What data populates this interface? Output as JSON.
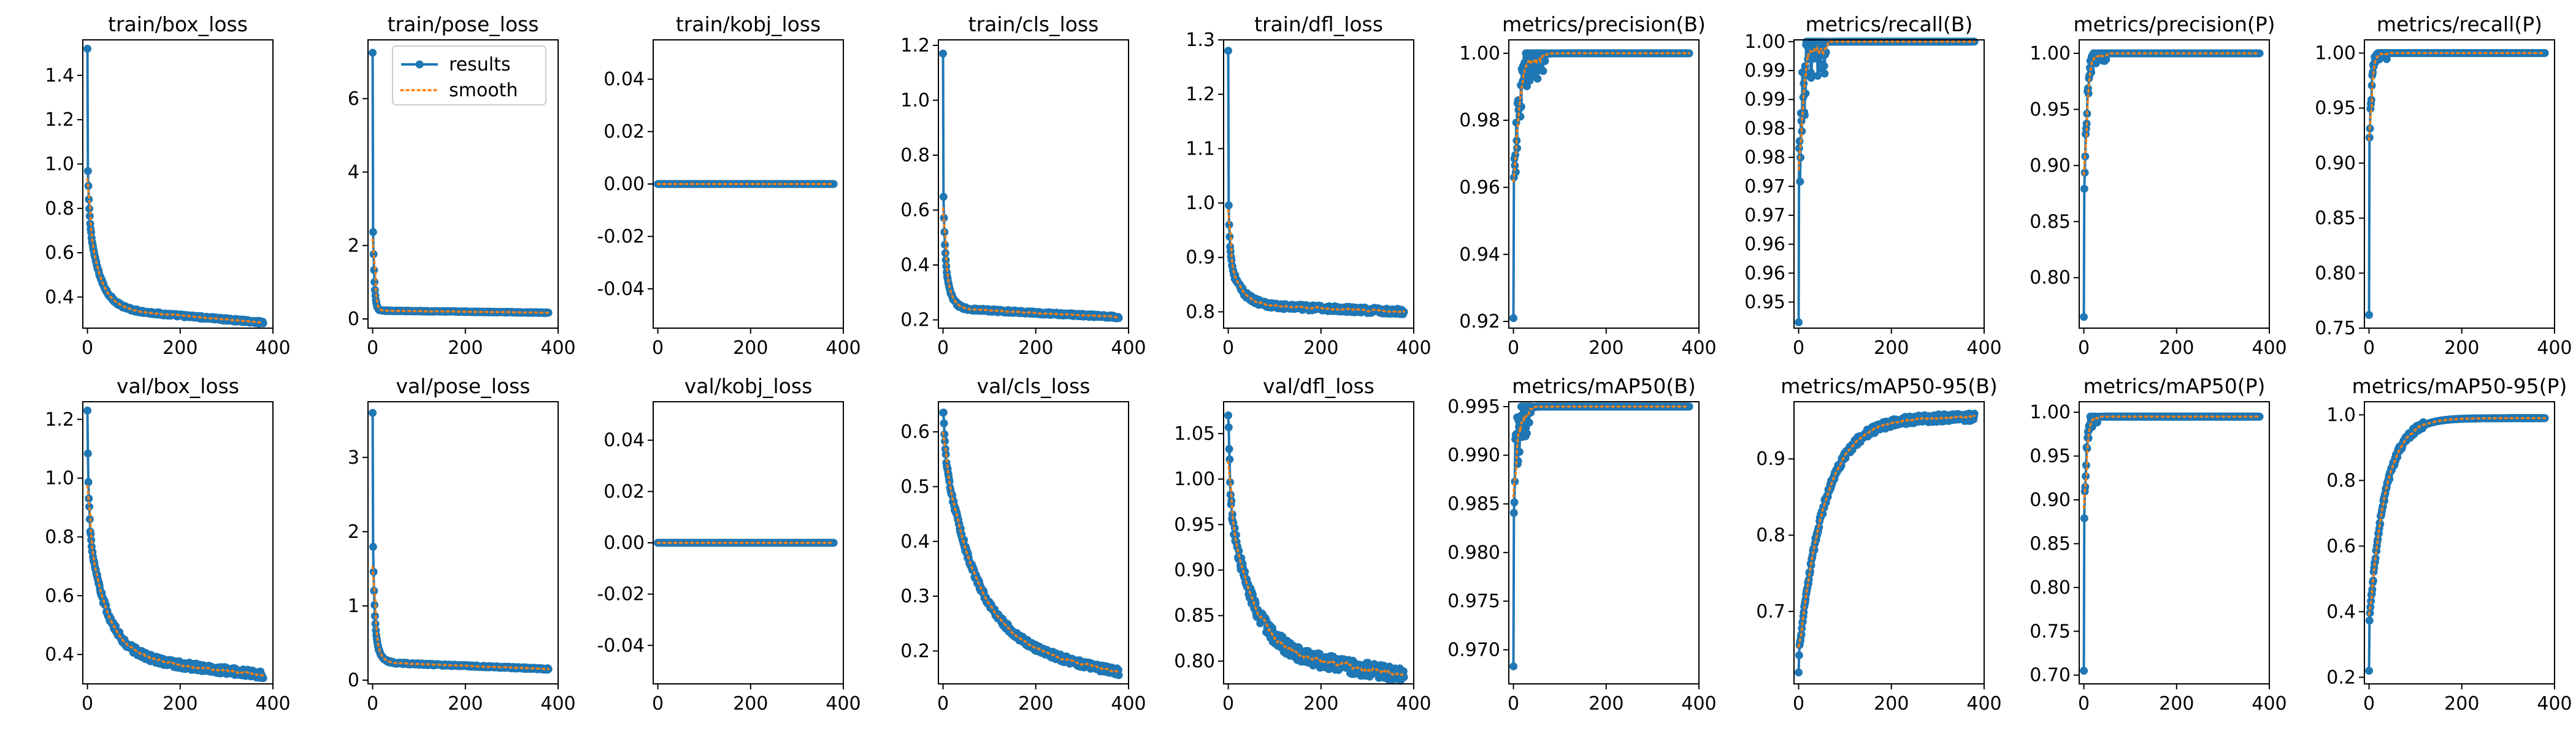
{
  "colors": {
    "results": "#1f77b4",
    "smooth": "#ff7f0e"
  },
  "legend": {
    "results": "results",
    "smooth": "smooth"
  },
  "chart_data": [
    {
      "id": "train_box_loss",
      "title": "train/box_loss",
      "type": "line",
      "xlim": [
        -10,
        400
      ],
      "ylim": [
        0.26,
        1.56
      ],
      "yticks": [
        0.4,
        0.6,
        0.8,
        1.0,
        1.2,
        1.4
      ],
      "dec": 1,
      "xticks": [
        0,
        200,
        400
      ],
      "curve": {
        "kind": "decay",
        "v0": 1.52,
        "a": 0.27,
        "b": 0.44,
        "tau": 25,
        "end": 0.285,
        "noise": 0.006
      }
    },
    {
      "id": "train_pose_loss",
      "title": "train/pose_loss",
      "type": "line",
      "xlim": [
        -10,
        400
      ],
      "ylim": [
        -0.25,
        7.6
      ],
      "yticks": [
        0,
        2,
        4,
        6
      ],
      "dec": 0,
      "xticks": [
        0,
        200,
        400
      ],
      "curve": {
        "kind": "decay",
        "v0": 7.25,
        "a": 2.6,
        "b": 0.38,
        "tau": 3,
        "end": 0.17,
        "noise": 0.01
      },
      "legend": true
    },
    {
      "id": "train_kobj_loss",
      "title": "train/kobj_loss",
      "type": "line",
      "xlim": [
        -10,
        400
      ],
      "ylim": [
        -0.055,
        0.055
      ],
      "yticks": [
        -0.04,
        -0.02,
        0.0,
        0.02,
        0.04
      ],
      "dec": 2,
      "xticks": [
        0,
        200,
        400
      ],
      "curve": {
        "kind": "const",
        "v": 0.0
      }
    },
    {
      "id": "train_cls_loss",
      "title": "train/cls_loss",
      "type": "line",
      "xlim": [
        -10,
        400
      ],
      "ylim": [
        0.17,
        1.22
      ],
      "yticks": [
        0.2,
        0.4,
        0.6,
        0.8,
        1.0,
        1.2
      ],
      "dec": 1,
      "xticks": [
        0,
        200,
        400
      ],
      "curve": {
        "kind": "decay",
        "v0": 1.17,
        "a": 0.28,
        "b": 0.22,
        "tau": 12,
        "end": 0.21,
        "noise": 0.005
      }
    },
    {
      "id": "train_dfl_loss",
      "title": "train/dfl_loss",
      "type": "line",
      "xlim": [
        -10,
        400
      ],
      "ylim": [
        0.77,
        1.3
      ],
      "yticks": [
        0.8,
        0.9,
        1.0,
        1.1,
        1.2,
        1.3
      ],
      "dec": 1,
      "xticks": [
        0,
        200,
        400
      ],
      "curve": {
        "kind": "decay",
        "v0": 1.28,
        "a": 0.13,
        "b": 0.09,
        "tau": 25,
        "end": 0.8,
        "noise": 0.005
      }
    },
    {
      "id": "metrics_precision_B",
      "title": "metrics/precision(B)",
      "type": "line",
      "xlim": [
        -10,
        400
      ],
      "ylim": [
        0.918,
        1.004
      ],
      "yticks": [
        0.92,
        0.94,
        0.96,
        0.98,
        1.0
      ],
      "dec": 2,
      "xticks": [
        0,
        200,
        400
      ],
      "curve": {
        "kind": "rise",
        "v0": 0.921,
        "start": 0.955,
        "plateau": 1.0,
        "tau": 12,
        "noise": 0.007,
        "noiseEnd": 70,
        "clamp": 1.0
      }
    },
    {
      "id": "metrics_recall_B",
      "title": "metrics/recall(B)",
      "type": "line",
      "xlim": [
        -10,
        400
      ],
      "ylim": [
        0.9505,
        1.0003
      ],
      "yticks": [
        0.955,
        0.96,
        0.965,
        0.97,
        0.975,
        0.98,
        0.985,
        0.99,
        0.995,
        1.0
      ],
      "dec": 2,
      "xticks": [
        0,
        200,
        400
      ],
      "curve": {
        "kind": "rise",
        "v0": 0.9515,
        "start": 0.975,
        "plateau": 1.0,
        "tau": 10,
        "noise": 0.006,
        "noiseEnd": 60,
        "clamp": 1.0
      }
    },
    {
      "id": "metrics_precision_P",
      "title": "metrics/precision(P)",
      "type": "line",
      "xlim": [
        -10,
        400
      ],
      "ylim": [
        0.755,
        1.012
      ],
      "yticks": [
        0.8,
        0.85,
        0.9,
        0.95,
        1.0
      ],
      "dec": 2,
      "xticks": [
        0,
        200,
        400
      ],
      "curve": {
        "kind": "rise",
        "v0": 0.765,
        "start": 0.85,
        "plateau": 1.0,
        "tau": 6,
        "noise": 0.008,
        "noiseEnd": 50,
        "clamp": 1.0
      }
    },
    {
      "id": "metrics_recall_P",
      "title": "metrics/recall(P)",
      "type": "line",
      "xlim": [
        -10,
        400
      ],
      "ylim": [
        0.75,
        1.012
      ],
      "yticks": [
        0.75,
        0.8,
        0.85,
        0.9,
        0.95,
        1.0
      ],
      "dec": 2,
      "xticks": [
        0,
        200,
        400
      ],
      "curve": {
        "kind": "rise",
        "v0": 0.762,
        "start": 0.9,
        "plateau": 1.0,
        "tau": 5,
        "noise": 0.006,
        "noiseEnd": 40,
        "clamp": 1.0
      }
    },
    {
      "id": "val_box_loss",
      "title": "val/box_loss",
      "type": "line",
      "xlim": [
        -10,
        400
      ],
      "ylim": [
        0.3,
        1.26
      ],
      "yticks": [
        0.4,
        0.6,
        0.8,
        1.0,
        1.2
      ],
      "dec": 1,
      "xticks": [
        0,
        200,
        400
      ],
      "curve": {
        "kind": "decay",
        "v0": 1.23,
        "a": 0.33,
        "b": 0.45,
        "tau": 40,
        "end": 0.33,
        "noise": 0.012
      }
    },
    {
      "id": "val_pose_loss",
      "title": "val/pose_loss",
      "type": "line",
      "xlim": [
        -10,
        400
      ],
      "ylim": [
        -0.05,
        3.75
      ],
      "yticks": [
        0,
        1,
        2,
        3
      ],
      "dec": 0,
      "xticks": [
        0,
        200,
        400
      ],
      "curve": {
        "kind": "decay",
        "v0": 3.6,
        "a": 1.4,
        "b": 0.6,
        "tau": 10,
        "end": 0.15,
        "noise": 0.01
      }
    },
    {
      "id": "val_kobj_loss",
      "title": "val/kobj_loss",
      "type": "line",
      "xlim": [
        -10,
        400
      ],
      "ylim": [
        -0.055,
        0.055
      ],
      "yticks": [
        -0.04,
        -0.02,
        0.0,
        0.02,
        0.04
      ],
      "dec": 2,
      "xticks": [
        0,
        200,
        400
      ],
      "curve": {
        "kind": "const",
        "v": 0.0
      }
    },
    {
      "id": "val_cls_loss",
      "title": "val/cls_loss",
      "type": "line",
      "xlim": [
        -10,
        400
      ],
      "ylim": [
        0.14,
        0.655
      ],
      "yticks": [
        0.2,
        0.3,
        0.4,
        0.5,
        0.6
      ],
      "dec": 1,
      "xticks": [
        0,
        200,
        400
      ],
      "curve": {
        "kind": "decay",
        "v0": 0.635,
        "a": 0.1,
        "b": 0.36,
        "tau": 70,
        "end": 0.16,
        "noise": 0.006
      }
    },
    {
      "id": "val_dfl_loss",
      "title": "val/dfl_loss",
      "type": "line",
      "xlim": [
        -10,
        400
      ],
      "ylim": [
        0.775,
        1.085
      ],
      "yticks": [
        0.8,
        0.85,
        0.9,
        0.95,
        1.0,
        1.05
      ],
      "dec": 2,
      "xticks": [
        0,
        200,
        400
      ],
      "curve": {
        "kind": "decay",
        "v0": 1.07,
        "a": 0.12,
        "b": 0.17,
        "tau": 50,
        "end": 0.785,
        "noise": 0.008
      }
    },
    {
      "id": "metrics_mAP50_B",
      "title": "metrics/mAP50(B)",
      "type": "line",
      "xlim": [
        -10,
        400
      ],
      "ylim": [
        0.9665,
        0.9955
      ],
      "yticks": [
        0.97,
        0.975,
        0.98,
        0.985,
        0.99,
        0.995
      ],
      "dec": 3,
      "xticks": [
        0,
        200,
        400
      ],
      "curve": {
        "kind": "rise",
        "v0": 0.9683,
        "start": 0.985,
        "plateau": 0.995,
        "tau": 8,
        "noise": 0.003,
        "noiseEnd": 40,
        "clamp": 0.995
      }
    },
    {
      "id": "metrics_mAP50_95_B",
      "title": "metrics/mAP50-95(B)",
      "type": "line",
      "xlim": [
        -10,
        400
      ],
      "ylim": [
        0.605,
        0.975
      ],
      "yticks": [
        0.7,
        0.8,
        0.9
      ],
      "dec": 1,
      "xticks": [
        0,
        200,
        400
      ],
      "curve": {
        "kind": "rise",
        "v0": 0.62,
        "start": 0.64,
        "plateau": 0.955,
        "tau": 55,
        "noise": 0.005,
        "noiseEnd": 400,
        "clamp": 0.96
      }
    },
    {
      "id": "metrics_mAP50_P",
      "title": "metrics/mAP50(P)",
      "type": "line",
      "xlim": [
        -10,
        400
      ],
      "ylim": [
        0.69,
        1.012
      ],
      "yticks": [
        0.7,
        0.75,
        0.8,
        0.85,
        0.9,
        0.95,
        1.0
      ],
      "dec": 2,
      "xticks": [
        0,
        200,
        400
      ],
      "curve": {
        "kind": "rise",
        "v0": 0.705,
        "start": 0.86,
        "plateau": 0.995,
        "tau": 5,
        "noise": 0.01,
        "noiseEnd": 30,
        "clamp": 0.995
      }
    },
    {
      "id": "metrics_mAP50_95_P",
      "title": "metrics/mAP50-95(P)",
      "type": "line",
      "xlim": [
        -10,
        400
      ],
      "ylim": [
        0.18,
        1.04
      ],
      "yticks": [
        0.2,
        0.4,
        0.6,
        0.8,
        1.0
      ],
      "dec": 1,
      "xticks": [
        0,
        200,
        400
      ],
      "curve": {
        "kind": "rise",
        "v0": 0.22,
        "start": 0.36,
        "plateau": 0.99,
        "tau": 35,
        "noise": 0.01,
        "noiseEnd": 120,
        "clamp": 0.995
      }
    }
  ]
}
